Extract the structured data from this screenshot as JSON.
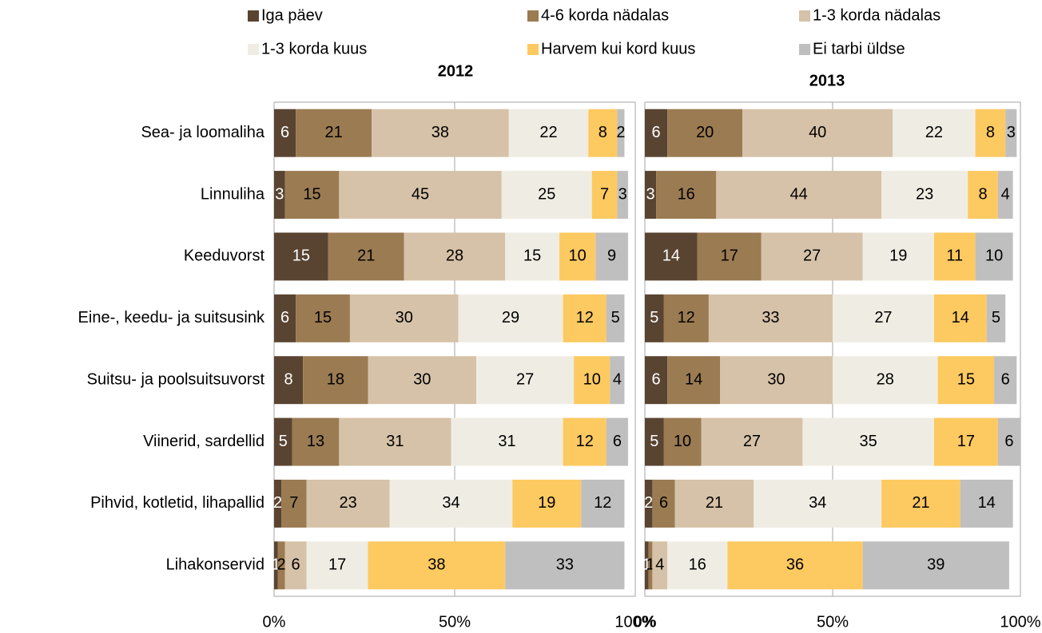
{
  "chart_data": [
    {
      "type": "bar",
      "title": "2012",
      "categories": [
        "Sea- ja loomaliha",
        "Linnuliha",
        "Keeduvorst",
        "Eine-, keedu- ja suitsusink",
        "Suitsu- ja poolsuitsuvorst",
        "Viinerid, sardellid",
        "Pihvid, kotletid, lihapallid",
        "Lihakonservid"
      ],
      "series": [
        {
          "name": "Iga päev",
          "color": "#594432",
          "values": [
            6,
            3,
            15,
            6,
            8,
            5,
            2,
            1
          ]
        },
        {
          "name": "4-6 korda nädalas",
          "color": "#9b7b52",
          "values": [
            21,
            15,
            21,
            15,
            18,
            13,
            7,
            2
          ]
        },
        {
          "name": "1-3 korda nädalas",
          "color": "#d6c2a8",
          "values": [
            38,
            45,
            28,
            30,
            30,
            31,
            23,
            6
          ]
        },
        {
          "name": "1-3 korda kuus",
          "color": "#efede3",
          "values": [
            22,
            25,
            15,
            29,
            27,
            31,
            34,
            17
          ]
        },
        {
          "name": "Harvem kui kord kuus",
          "color": "#fdc961",
          "values": [
            8,
            7,
            10,
            12,
            10,
            12,
            19,
            38
          ]
        },
        {
          "name": "Ei tarbi üldse",
          "color": "#bfbfbf",
          "values": [
            2,
            3,
            9,
            5,
            4,
            6,
            12,
            33
          ]
        }
      ],
      "xlim": [
        0,
        100
      ],
      "xticks": [
        {
          "value": 0,
          "label": "0%"
        },
        {
          "value": 50,
          "label": "50%"
        },
        {
          "value": 100,
          "label": "100%"
        }
      ],
      "grid": true
    },
    {
      "type": "bar",
      "title": "2013",
      "series": [
        {
          "color": "#594432",
          "values": [
            6,
            3,
            14,
            5,
            6,
            5,
            2,
            1
          ]
        },
        {
          "color": "#9b7b52",
          "values": [
            20,
            16,
            17,
            12,
            14,
            10,
            6,
            1
          ]
        },
        {
          "color": "#d6c2a8",
          "values": [
            40,
            44,
            27,
            33,
            30,
            27,
            21,
            4
          ]
        },
        {
          "color": "#efede3",
          "values": [
            22,
            23,
            19,
            27,
            28,
            35,
            34,
            16
          ]
        },
        {
          "color": "#fdc961",
          "values": [
            8,
            8,
            11,
            14,
            15,
            17,
            21,
            36
          ]
        },
        {
          "color": "#bfbfbf",
          "values": [
            3,
            4,
            10,
            5,
            6,
            6,
            14,
            39
          ]
        }
      ],
      "xlim": [
        0,
        100
      ],
      "xticks": [
        {
          "value": 0,
          "label": "0%"
        },
        {
          "value": 50,
          "label": "50%"
        },
        {
          "value": 100,
          "label": "100%"
        }
      ],
      "grid": true
    }
  ]
}
